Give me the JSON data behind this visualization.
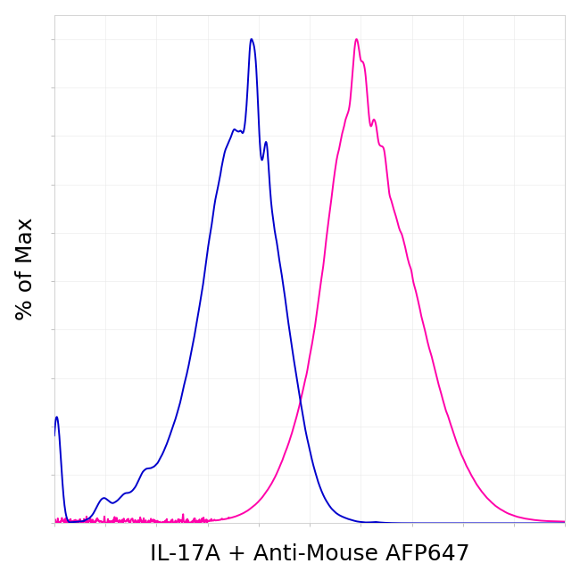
{
  "title": "",
  "xlabel": "IL-17A + Anti-Mouse AFP647",
  "ylabel": "% of Max",
  "background_color": "#ffffff",
  "plot_bg_color": "#ffffff",
  "blue_color": "#0000cc",
  "magenta_color": "#ff00aa",
  "line_width": 1.4,
  "xlim": [
    0,
    1
  ],
  "ylim": [
    0,
    1.05
  ],
  "xlabel_fontsize": 18,
  "ylabel_fontsize": 18
}
